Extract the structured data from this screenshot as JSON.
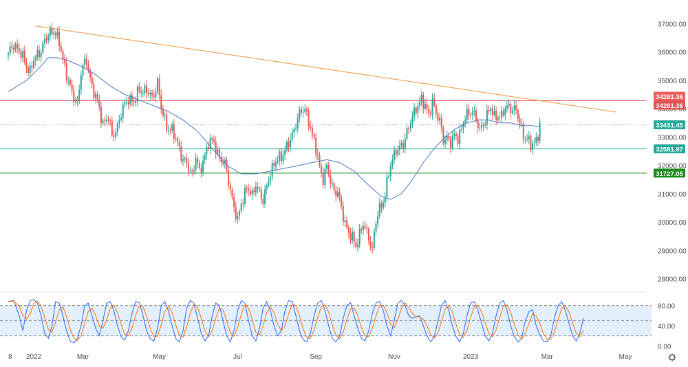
{
  "chart_data": [
    {
      "type": "candlestick",
      "instrument": "",
      "price_axis": {
        "ylim": [
          27700,
          37300
        ],
        "ticks": [
          "37000.00",
          "36000.00",
          "35000.00",
          "34000.00",
          "33000.00",
          "32000.00",
          "31000.00",
          "30000.00",
          "29000.00",
          "28000.00"
        ]
      },
      "time_axis": {
        "labels": [
          {
            "text": "8",
            "t": 0
          },
          {
            "text": "2022",
            "t": 14
          },
          {
            "text": "Mar",
            "t": 41
          },
          {
            "text": "May",
            "t": 83
          },
          {
            "text": "Jul",
            "t": 126
          },
          {
            "text": "Sep",
            "t": 169
          },
          {
            "text": "Nov",
            "t": 212
          },
          {
            "text": "2023",
            "t": 254
          },
          {
            "text": "Mar",
            "t": 296
          },
          {
            "text": "May",
            "t": 339
          }
        ]
      },
      "horizontal_lines": [
        {
          "value": 34281.36,
          "color": "#e06666"
        },
        {
          "value": 32581.97,
          "color": "#26a69a"
        },
        {
          "value": 31727.05,
          "color": "#1b8a1b"
        }
      ],
      "current_price_line": {
        "value": 33431.45,
        "color": "#9e9e9e"
      },
      "trendline": {
        "from": {
          "t": 15,
          "v": 36920
        },
        "to": {
          "t": 334,
          "v": 33880
        },
        "color": "#f2a65a"
      },
      "moving_average_color": "#4a78c2",
      "price_labels": [
        {
          "text": "34281.36",
          "value": 34281.36,
          "color": "#f05b5b",
          "offset": -1
        },
        {
          "text": "34281.36",
          "value": 34281.36,
          "color": "#e05252",
          "offset": 1
        },
        {
          "text": "33431.45",
          "value": 33431.45,
          "color": "#26a69a",
          "offset": 0
        },
        {
          "text": "32581.97",
          "value": 32581.97,
          "color": "#26a69a",
          "offset": 0
        },
        {
          "text": "31727.05",
          "value": 31727.05,
          "color": "#1b8a1b",
          "offset": 0
        }
      ],
      "colors": {
        "up": "#26a69a",
        "down": "#ef5350"
      },
      "price_path": [
        [
          0,
          35900
        ],
        [
          3,
          36300
        ],
        [
          8,
          35800
        ],
        [
          12,
          35300
        ],
        [
          14,
          35700
        ],
        [
          18,
          36100
        ],
        [
          22,
          36600
        ],
        [
          25,
          36800
        ],
        [
          28,
          36300
        ],
        [
          31,
          35500
        ],
        [
          35,
          34500
        ],
        [
          38,
          34200
        ],
        [
          40,
          35300
        ],
        [
          43,
          35700
        ],
        [
          46,
          34800
        ],
        [
          49,
          34200
        ],
        [
          52,
          33500
        ],
        [
          55,
          33700
        ],
        [
          57,
          33000
        ],
        [
          60,
          33400
        ],
        [
          63,
          34000
        ],
        [
          66,
          34400
        ],
        [
          69,
          34200
        ],
        [
          72,
          34700
        ],
        [
          76,
          34600
        ],
        [
          79,
          34400
        ],
        [
          82,
          34900
        ],
        [
          84,
          34000
        ],
        [
          87,
          33400
        ],
        [
          90,
          33200
        ],
        [
          93,
          32800
        ],
        [
          96,
          32200
        ],
        [
          99,
          31900
        ],
        [
          101,
          31700
        ],
        [
          103,
          32300
        ],
        [
          105,
          31700
        ],
        [
          108,
          32400
        ],
        [
          110,
          32800
        ],
        [
          113,
          32800
        ],
        [
          116,
          32300
        ],
        [
          119,
          32000
        ],
        [
          121,
          31500
        ],
        [
          124,
          30500
        ],
        [
          126,
          30000
        ],
        [
          128,
          30700
        ],
        [
          131,
          31200
        ],
        [
          134,
          30900
        ],
        [
          136,
          31400
        ],
        [
          138,
          31000
        ],
        [
          140,
          30700
        ],
        [
          143,
          31600
        ],
        [
          146,
          32000
        ],
        [
          149,
          32300
        ],
        [
          152,
          32500
        ],
        [
          155,
          32900
        ],
        [
          158,
          33500
        ],
        [
          161,
          33900
        ],
        [
          163,
          34000
        ],
        [
          165,
          33600
        ],
        [
          167,
          33000
        ],
        [
          169,
          32600
        ],
        [
          171,
          32000
        ],
        [
          173,
          31500
        ],
        [
          175,
          31900
        ],
        [
          177,
          31500
        ],
        [
          179,
          31100
        ],
        [
          181,
          31000
        ],
        [
          183,
          30500
        ],
        [
          185,
          30000
        ],
        [
          187,
          29600
        ],
        [
          189,
          29400
        ],
        [
          191,
          29200
        ],
        [
          193,
          29600
        ],
        [
          195,
          29900
        ],
        [
          197,
          29600
        ],
        [
          199,
          29300
        ],
        [
          200,
          29000
        ],
        [
          201,
          29600
        ],
        [
          203,
          30300
        ],
        [
          205,
          30600
        ],
        [
          207,
          31000
        ],
        [
          209,
          31700
        ],
        [
          211,
          32200
        ],
        [
          213,
          32600
        ],
        [
          215,
          32600
        ],
        [
          217,
          32700
        ],
        [
          219,
          33200
        ],
        [
          221,
          33600
        ],
        [
          223,
          33800
        ],
        [
          225,
          34100
        ],
        [
          227,
          34400
        ],
        [
          229,
          34100
        ],
        [
          231,
          33700
        ],
        [
          233,
          34300
        ],
        [
          235,
          33900
        ],
        [
          237,
          33500
        ],
        [
          239,
          32900
        ],
        [
          241,
          33000
        ],
        [
          243,
          32800
        ],
        [
          245,
          33000
        ],
        [
          247,
          33000
        ],
        [
          249,
          33300
        ],
        [
          251,
          33700
        ],
        [
          253,
          33800
        ],
        [
          255,
          34000
        ],
        [
          257,
          33600
        ],
        [
          259,
          33200
        ],
        [
          261,
          33500
        ],
        [
          263,
          33800
        ],
        [
          265,
          34000
        ],
        [
          267,
          33700
        ],
        [
          269,
          33800
        ],
        [
          271,
          33700
        ],
        [
          273,
          34000
        ],
        [
          275,
          34100
        ],
        [
          277,
          34000
        ],
        [
          279,
          33900
        ],
        [
          281,
          33500
        ],
        [
          283,
          33100
        ],
        [
          285,
          32900
        ],
        [
          287,
          32700
        ],
        [
          289,
          32800
        ],
        [
          291,
          33100
        ],
        [
          292,
          33430
        ]
      ],
      "ma_path": [
        [
          0,
          34600
        ],
        [
          10,
          35000
        ],
        [
          18,
          35500
        ],
        [
          22,
          35800
        ],
        [
          27,
          35800
        ],
        [
          33,
          35700
        ],
        [
          40,
          35500
        ],
        [
          48,
          35200
        ],
        [
          56,
          34800
        ],
        [
          64,
          34500
        ],
        [
          72,
          34300
        ],
        [
          80,
          34100
        ],
        [
          88,
          33900
        ],
        [
          96,
          33600
        ],
        [
          104,
          33200
        ],
        [
          112,
          32600
        ],
        [
          120,
          32000
        ],
        [
          128,
          31700
        ],
        [
          136,
          31700
        ],
        [
          144,
          31800
        ],
        [
          152,
          31900
        ],
        [
          160,
          32000
        ],
        [
          167,
          32100
        ],
        [
          175,
          32200
        ],
        [
          182,
          32100
        ],
        [
          190,
          31800
        ],
        [
          198,
          31300
        ],
        [
          205,
          30900
        ],
        [
          210,
          30800
        ],
        [
          216,
          31000
        ],
        [
          222,
          31500
        ],
        [
          228,
          32100
        ],
        [
          234,
          32600
        ],
        [
          240,
          33000
        ],
        [
          246,
          33300
        ],
        [
          252,
          33500
        ],
        [
          258,
          33600
        ],
        [
          264,
          33600
        ],
        [
          270,
          33500
        ],
        [
          276,
          33500
        ],
        [
          282,
          33400
        ],
        [
          288,
          33400
        ],
        [
          292,
          33350
        ]
      ]
    },
    {
      "type": "line",
      "indicator": "stochastic",
      "ylim": [
        -5,
        100
      ],
      "ticks": [
        "80.00",
        "40.00",
        "0.00"
      ],
      "upper_band": 80,
      "lower_band": 20,
      "colors": {
        "k": "#2962ff",
        "d": "#ff6d00",
        "band_fill": "#e3f0fc"
      },
      "k_path": [
        [
          0,
          88
        ],
        [
          3,
          90
        ],
        [
          6,
          60
        ],
        [
          8,
          30
        ],
        [
          10,
          70
        ],
        [
          12,
          90
        ],
        [
          14,
          92
        ],
        [
          16,
          85
        ],
        [
          18,
          60
        ],
        [
          20,
          25
        ],
        [
          22,
          15
        ],
        [
          24,
          40
        ],
        [
          26,
          88
        ],
        [
          28,
          85
        ],
        [
          30,
          60
        ],
        [
          32,
          30
        ],
        [
          34,
          10
        ],
        [
          36,
          6
        ],
        [
          38,
          15
        ],
        [
          40,
          40
        ],
        [
          42,
          80
        ],
        [
          44,
          85
        ],
        [
          46,
          60
        ],
        [
          48,
          35
        ],
        [
          50,
          20
        ],
        [
          52,
          50
        ],
        [
          54,
          85
        ],
        [
          56,
          88
        ],
        [
          58,
          70
        ],
        [
          60,
          40
        ],
        [
          62,
          18
        ],
        [
          64,
          12
        ],
        [
          66,
          30
        ],
        [
          68,
          65
        ],
        [
          70,
          88
        ],
        [
          72,
          86
        ],
        [
          74,
          60
        ],
        [
          76,
          30
        ],
        [
          78,
          14
        ],
        [
          80,
          10
        ],
        [
          82,
          35
        ],
        [
          84,
          80
        ],
        [
          86,
          88
        ],
        [
          88,
          70
        ],
        [
          90,
          40
        ],
        [
          92,
          15
        ],
        [
          94,
          8
        ],
        [
          96,
          30
        ],
        [
          98,
          75
        ],
        [
          100,
          90
        ],
        [
          102,
          85
        ],
        [
          104,
          55
        ],
        [
          106,
          25
        ],
        [
          108,
          10
        ],
        [
          110,
          20
        ],
        [
          112,
          60
        ],
        [
          114,
          85
        ],
        [
          116,
          80
        ],
        [
          118,
          50
        ],
        [
          120,
          20
        ],
        [
          122,
          8
        ],
        [
          124,
          30
        ],
        [
          126,
          70
        ],
        [
          128,
          90
        ],
        [
          130,
          85
        ],
        [
          132,
          50
        ],
        [
          134,
          20
        ],
        [
          136,
          10
        ],
        [
          138,
          35
        ],
        [
          140,
          75
        ],
        [
          142,
          88
        ],
        [
          144,
          70
        ],
        [
          146,
          40
        ],
        [
          148,
          20
        ],
        [
          150,
          30
        ],
        [
          152,
          70
        ],
        [
          154,
          90
        ],
        [
          156,
          88
        ],
        [
          158,
          60
        ],
        [
          160,
          30
        ],
        [
          162,
          12
        ],
        [
          164,
          8
        ],
        [
          166,
          25
        ],
        [
          168,
          60
        ],
        [
          170,
          85
        ],
        [
          172,
          90
        ],
        [
          174,
          70
        ],
        [
          176,
          40
        ],
        [
          178,
          15
        ],
        [
          180,
          8
        ],
        [
          182,
          20
        ],
        [
          184,
          55
        ],
        [
          186,
          80
        ],
        [
          188,
          86
        ],
        [
          190,
          60
        ],
        [
          192,
          35
        ],
        [
          194,
          15
        ],
        [
          196,
          10
        ],
        [
          198,
          30
        ],
        [
          200,
          65
        ],
        [
          202,
          85
        ],
        [
          204,
          88
        ],
        [
          206,
          70
        ],
        [
          208,
          40
        ],
        [
          210,
          20
        ],
        [
          212,
          50
        ],
        [
          214,
          85
        ],
        [
          216,
          90
        ],
        [
          218,
          80
        ],
        [
          220,
          60
        ],
        [
          222,
          55
        ],
        [
          224,
          58
        ],
        [
          226,
          60
        ],
        [
          228,
          40
        ],
        [
          230,
          20
        ],
        [
          232,
          8
        ],
        [
          234,
          18
        ],
        [
          236,
          50
        ],
        [
          238,
          80
        ],
        [
          240,
          90
        ],
        [
          242,
          70
        ],
        [
          244,
          40
        ],
        [
          246,
          18
        ],
        [
          248,
          8
        ],
        [
          250,
          25
        ],
        [
          252,
          60
        ],
        [
          254,
          85
        ],
        [
          256,
          88
        ],
        [
          258,
          70
        ],
        [
          260,
          45
        ],
        [
          262,
          20
        ],
        [
          264,
          10
        ],
        [
          266,
          25
        ],
        [
          268,
          60
        ],
        [
          270,
          85
        ],
        [
          272,
          90
        ],
        [
          274,
          70
        ],
        [
          276,
          40
        ],
        [
          278,
          18
        ],
        [
          280,
          8
        ],
        [
          282,
          15
        ],
        [
          284,
          50
        ],
        [
          286,
          68
        ],
        [
          288,
          72
        ],
        [
          290,
          40
        ],
        [
          292,
          22
        ],
        [
          294,
          10
        ],
        [
          296,
          8
        ],
        [
          298,
          20
        ],
        [
          300,
          55
        ],
        [
          302,
          80
        ],
        [
          304,
          88
        ],
        [
          306,
          70
        ],
        [
          308,
          45
        ],
        [
          310,
          20
        ],
        [
          312,
          10
        ],
        [
          314,
          25
        ],
        [
          316,
          55
        ]
      ]
    }
  ]
}
